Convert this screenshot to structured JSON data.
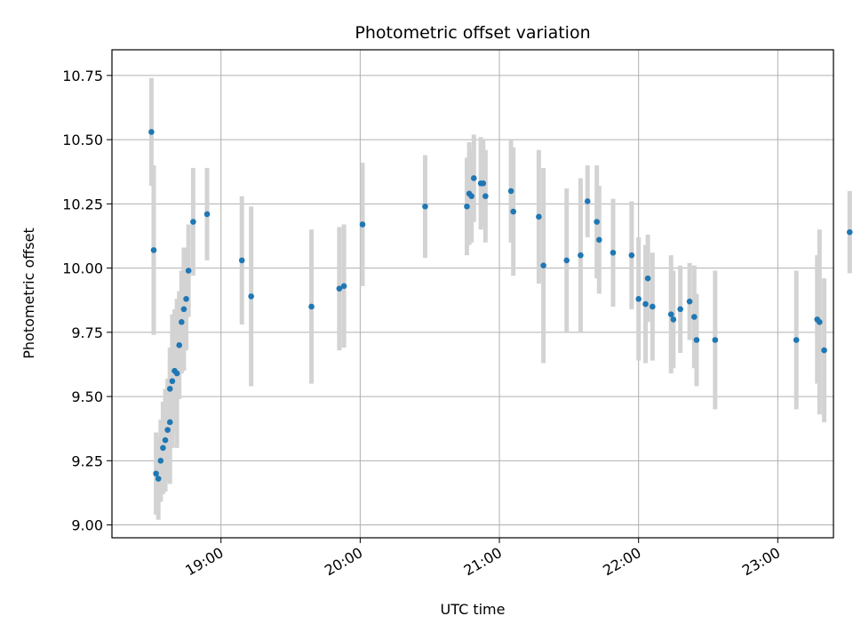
{
  "chart_data": {
    "type": "scatter",
    "title": "Photometric offset variation",
    "xlabel": "UTC time",
    "ylabel": "Photometric offset",
    "xlim": [
      "18:13",
      "23:24"
    ],
    "ylim": [
      8.95,
      10.85
    ],
    "x_ticks": [
      "19:00",
      "20:00",
      "21:00",
      "22:00",
      "23:00"
    ],
    "y_ticks": [
      "9.00",
      "9.25",
      "9.50",
      "9.75",
      "10.00",
      "10.25",
      "10.50",
      "10.75"
    ],
    "grid": true,
    "colors": {
      "point": "#1f77b4",
      "errorbar": "#d3d3d3",
      "grid": "#b0b0b0"
    },
    "series": [
      {
        "x": [
          "18:30",
          "18:31",
          "18:32",
          "18:33",
          "18:34",
          "18:35",
          "18:36",
          "18:37",
          "18:38",
          "18:38",
          "18:39",
          "18:40",
          "18:41",
          "18:42",
          "18:43",
          "18:44",
          "18:45",
          "18:46",
          "18:48",
          "18:54",
          "19:09",
          "19:13",
          "19:39",
          "19:51",
          "19:53",
          "20:01",
          "20:28",
          "20:46",
          "20:47",
          "20:48",
          "20:49",
          "20:52",
          "20:53",
          "20:54",
          "21:05",
          "21:06",
          "21:17",
          "21:19",
          "21:29",
          "21:35",
          "21:38",
          "21:42",
          "21:43",
          "21:49",
          "21:57",
          "22:00",
          "22:03",
          "22:04",
          "22:06",
          "22:14",
          "22:15",
          "22:18",
          "22:22",
          "22:24",
          "22:25",
          "22:33",
          "23:08",
          "23:17",
          "23:18",
          "23:20",
          "23:31"
        ],
        "y": [
          10.53,
          10.07,
          9.2,
          9.18,
          9.25,
          9.3,
          9.33,
          9.37,
          9.4,
          9.53,
          9.56,
          9.6,
          9.59,
          9.7,
          9.79,
          9.84,
          9.88,
          9.99,
          10.18,
          10.21,
          10.03,
          9.89,
          9.85,
          9.92,
          9.93,
          10.17,
          10.24,
          10.24,
          10.29,
          10.28,
          10.35,
          10.33,
          10.33,
          10.28,
          10.3,
          10.22,
          10.2,
          10.01,
          10.03,
          10.05,
          10.26,
          10.18,
          10.11,
          10.06,
          10.05,
          9.88,
          9.86,
          9.96,
          9.85,
          9.82,
          9.8,
          9.84,
          9.87,
          9.81,
          9.72,
          9.72,
          9.72,
          9.8,
          9.79,
          9.68,
          10.14
        ],
        "yerr": [
          0.21,
          0.33,
          0.16,
          0.16,
          0.16,
          0.18,
          0.2,
          0.2,
          0.24,
          0.16,
          0.26,
          0.24,
          0.29,
          0.21,
          0.2,
          0.24,
          0.2,
          0.18,
          0.21,
          0.18,
          0.25,
          0.35,
          0.3,
          0.24,
          0.24,
          0.24,
          0.2,
          0.19,
          0.2,
          0.18,
          0.17,
          0.18,
          0.17,
          0.18,
          0.2,
          0.25,
          0.26,
          0.38,
          0.28,
          0.3,
          0.14,
          0.22,
          0.21,
          0.21,
          0.21,
          0.24,
          0.23,
          0.17,
          0.21,
          0.23,
          0.19,
          0.17,
          0.15,
          0.2,
          0.18,
          0.27,
          0.27,
          0.25,
          0.36,
          0.28,
          0.16
        ]
      }
    ]
  }
}
